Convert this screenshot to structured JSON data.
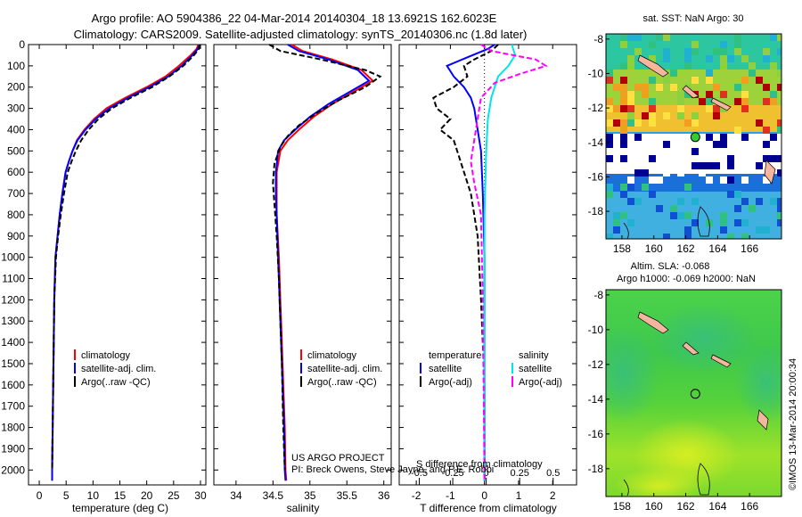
{
  "header": {
    "line1": "Argo profile: AO 5904386_22 04-Mar-2014 20140304_18 13.6921S 162.6023E",
    "line2": "Climatology: CARS2009. Satellite-adjusted climatology: synTS_20140306.nc (1.8d later)"
  },
  "colors": {
    "clim": "#ff0000",
    "sat": "#0000ff",
    "argo": "#000000",
    "sal_sat": "#00e5e5",
    "sal_argo": "#ff00ff"
  },
  "chart_data": [
    {
      "id": "temperature",
      "type": "line",
      "xlabel": "temperature (deg C)",
      "ylabel": "",
      "xlim": [
        -2,
        31
      ],
      "ylim": [
        2070,
        0
      ],
      "xticks": [
        0,
        5,
        10,
        15,
        20,
        25,
        30
      ],
      "yticks": [
        0,
        100,
        200,
        300,
        400,
        500,
        600,
        700,
        800,
        900,
        1000,
        1100,
        1200,
        1300,
        1400,
        1500,
        1600,
        1700,
        1800,
        1900,
        2000
      ],
      "legend": [
        "climatology",
        "satellite-adj. clim.",
        "Argo(..raw -QC)"
      ],
      "series": [
        {
          "name": "climatology",
          "key": "clim",
          "x": [
            29.6,
            29.3,
            28.2,
            26.0,
            23.5,
            20.0,
            16.0,
            12.5,
            10.2,
            8.4,
            7.0,
            6.2,
            5.5,
            4.9,
            4.3,
            3.8,
            3.4,
            3.0,
            2.8,
            2.7,
            2.6,
            2.5,
            2.4,
            2.4
          ],
          "y": [
            0,
            20,
            50,
            100,
            150,
            200,
            250,
            300,
            350,
            400,
            450,
            500,
            550,
            600,
            700,
            800,
            900,
            1000,
            1200,
            1400,
            1600,
            1800,
            2000,
            2050
          ]
        },
        {
          "name": "satellite-adj. clim.",
          "key": "sat",
          "x": [
            29.8,
            29.5,
            28.5,
            26.5,
            24.0,
            20.5,
            16.5,
            13.0,
            10.5,
            8.6,
            7.1,
            6.2,
            5.5,
            4.9,
            4.3,
            3.8,
            3.4,
            3.0,
            2.8,
            2.7,
            2.6,
            2.5,
            2.4,
            2.4
          ],
          "y": [
            0,
            20,
            50,
            100,
            150,
            200,
            250,
            300,
            350,
            400,
            450,
            500,
            550,
            600,
            700,
            800,
            900,
            1000,
            1200,
            1400,
            1600,
            1800,
            2000,
            2050
          ]
        },
        {
          "name": "Argo(..raw -QC)",
          "key": "argo",
          "dash": true,
          "x": [
            29.9,
            29.7,
            28.8,
            26.8,
            24.2,
            21.0,
            17.0,
            13.5,
            11.0,
            9.2,
            7.8,
            6.8,
            6.0,
            5.3,
            4.6,
            4.0,
            3.5,
            3.1,
            2.8,
            2.7,
            2.6,
            2.5,
            2.4
          ],
          "y": [
            0,
            20,
            50,
            100,
            150,
            200,
            250,
            300,
            350,
            400,
            450,
            500,
            550,
            600,
            700,
            800,
            900,
            1000,
            1200,
            1400,
            1600,
            1800,
            2000
          ]
        }
      ]
    },
    {
      "id": "salinity",
      "type": "line",
      "xlabel": "salinity",
      "ylabel": "",
      "xlim": [
        33.7,
        36.1
      ],
      "ylim": [
        2070,
        0
      ],
      "xticks": [
        34,
        34.5,
        35,
        35.5,
        36
      ],
      "xticklabels": [
        "34",
        "34.5",
        "35",
        "35.5",
        "36"
      ],
      "legend": [
        "climatology",
        "satellite-adj. clim.",
        "Argo(..raw -QC)"
      ],
      "annotation": [
        "US ARGO PROJECT",
        "PI: Breck Owens, Steve Jayne, and P.E. Robbi"
      ],
      "series": [
        {
          "name": "climatology",
          "key": "clim",
          "x": [
            34.75,
            34.9,
            35.3,
            35.7,
            35.85,
            35.6,
            35.3,
            35.05,
            34.85,
            34.7,
            34.6,
            34.55,
            34.55,
            34.55,
            34.58,
            34.6,
            34.62,
            34.64,
            34.66,
            34.67,
            34.68
          ],
          "y": [
            0,
            30,
            70,
            120,
            170,
            220,
            280,
            340,
            400,
            450,
            500,
            600,
            700,
            800,
            1000,
            1200,
            1400,
            1600,
            1800,
            2000,
            2050
          ]
        },
        {
          "name": "satellite-adj. clim.",
          "key": "sat",
          "x": [
            34.7,
            34.85,
            35.25,
            35.65,
            35.8,
            35.55,
            35.25,
            35.0,
            34.8,
            34.65,
            34.57,
            34.54,
            34.54,
            34.55,
            34.57,
            34.59,
            34.61,
            34.63,
            34.65,
            34.66,
            34.67
          ],
          "y": [
            0,
            30,
            70,
            120,
            170,
            220,
            280,
            340,
            400,
            450,
            500,
            600,
            700,
            800,
            1000,
            1200,
            1400,
            1600,
            1800,
            2000,
            2050
          ]
        },
        {
          "name": "Argo(..raw -QC)",
          "key": "argo",
          "dash": true,
          "x": [
            34.45,
            34.6,
            35.15,
            35.75,
            35.95,
            35.75,
            35.4,
            35.1,
            34.85,
            34.7,
            34.6,
            34.52,
            34.5,
            34.52,
            34.55,
            34.58,
            34.6,
            34.62,
            34.64,
            34.66
          ],
          "y": [
            0,
            30,
            70,
            120,
            150,
            200,
            260,
            320,
            380,
            430,
            480,
            560,
            650,
            750,
            900,
            1100,
            1300,
            1500,
            1800,
            2000
          ]
        }
      ]
    },
    {
      "id": "difference",
      "type": "line",
      "xlabel": "T difference from climatology",
      "xlabel2": "S difference from climatology",
      "xlim": [
        -2.5,
        2.7
      ],
      "ylim": [
        2070,
        0
      ],
      "xticks": [
        -2,
        -1,
        0,
        1,
        2
      ],
      "xticks2": [
        -0.5,
        -0.25,
        0,
        0.25,
        0.5
      ],
      "xticklabels2": [
        "-0.5",
        "-0.25",
        "0",
        "0.25",
        "0.5"
      ],
      "legend_title_t": "temperature",
      "legend_title_s": "salinity",
      "legend_t": [
        "satellite",
        "Argo(-adj)"
      ],
      "legend_s": [
        "satellite",
        "Argo(-adj)"
      ],
      "series": [
        {
          "name": "T satellite",
          "key": "sat",
          "x": [
            0.3,
            0.1,
            -0.5,
            -1.1,
            -0.9,
            -0.6,
            -0.4,
            -0.3,
            -0.2,
            -0.1,
            -0.05,
            0,
            0,
            0
          ],
          "y": [
            0,
            20,
            60,
            100,
            150,
            200,
            250,
            300,
            400,
            500,
            700,
            1000,
            1500,
            2050
          ]
        },
        {
          "name": "T Argo(-adj)",
          "key": "argo",
          "dash": true,
          "x": [
            0.4,
            0.2,
            -0.3,
            -0.6,
            -0.5,
            -0.9,
            -1.5,
            -1.4,
            -1.0,
            -1.3,
            -0.9,
            -0.7,
            -0.4,
            -0.2,
            -0.1,
            0,
            0
          ],
          "y": [
            0,
            30,
            70,
            100,
            150,
            200,
            250,
            300,
            350,
            400,
            450,
            550,
            700,
            900,
            1200,
            1600,
            2050
          ]
        },
        {
          "name": "S satellite",
          "key": "sal_sat",
          "x": [
            0.8,
            0.9,
            0.7,
            0.4,
            0.2,
            0.1,
            0.05,
            0,
            0,
            0
          ],
          "y": [
            0,
            50,
            100,
            150,
            250,
            350,
            500,
            800,
            1500,
            2050
          ]
        },
        {
          "name": "S Argo(-adj)",
          "key": "sal_argo",
          "dash": true,
          "x": [
            -0.1,
            0.2,
            1.5,
            1.8,
            1.0,
            0.3,
            -0.1,
            -0.2,
            -0.4,
            -0.3,
            -0.1,
            -0.05,
            0
          ],
          "y": [
            0,
            30,
            70,
            100,
            140,
            180,
            250,
            350,
            550,
            650,
            800,
            1200,
            2050
          ]
        }
      ]
    },
    {
      "id": "sst_map",
      "type": "heatmap",
      "title": "sat. SST: NaN Argo: 30",
      "xticks": [
        158,
        160,
        162,
        164,
        166
      ],
      "yticks": [
        -8,
        -10,
        -12,
        -14,
        -16,
        -18
      ],
      "xlim": [
        157,
        168
      ],
      "ylim": [
        -19.6,
        -7.7
      ],
      "marker": {
        "lon": 162.6023,
        "lat": -13.6921
      }
    },
    {
      "id": "sla_map",
      "type": "heatmap",
      "title": "Altim. SLA: -0.068",
      "subtitle": "Argo h1000: -0.069 h2000: NaN",
      "xticks": [
        158,
        160,
        162,
        164,
        166
      ],
      "yticks": [
        -8,
        -10,
        -12,
        -14,
        -16,
        -18
      ],
      "xlim": [
        157,
        168
      ],
      "ylim": [
        -19.6,
        -7.7
      ],
      "marker": {
        "lon": 162.6023,
        "lat": -13.6921
      }
    }
  ],
  "footer_stamp": "©IMOS 13-Mar-2014 20:00:34"
}
